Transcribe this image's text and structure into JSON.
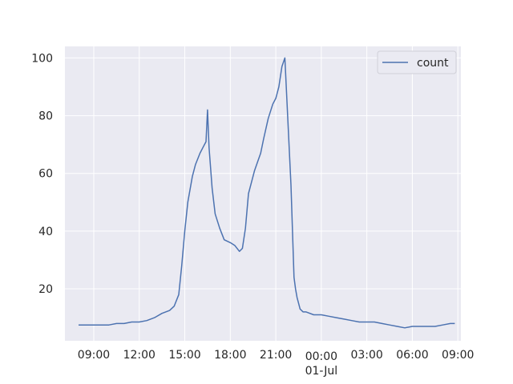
{
  "chart_data": {
    "type": "line",
    "xlabel": "",
    "x_ticks": [
      "09:00",
      "12:00",
      "15:00",
      "18:00",
      "21:00",
      "00:00\n01-Jul",
      "03:00",
      "06:00",
      "09:00"
    ],
    "x_tick_hours": [
      9,
      12,
      15,
      18,
      21,
      24,
      27,
      30,
      33
    ],
    "xlim_hours": [
      7.1,
      33.2
    ],
    "y_ticks": [
      20,
      40,
      60,
      80,
      100
    ],
    "ylim": [
      2,
      104
    ],
    "grid": true,
    "legend": {
      "position": "top-right",
      "entries": [
        "count"
      ]
    },
    "colors": {
      "series": "#4c72b0",
      "plot_bg": "#eaeaf2",
      "grid": "#ffffff"
    },
    "series": [
      {
        "name": "count",
        "x_hours": [
          8.0,
          8.5,
          9.0,
          9.5,
          10.0,
          10.5,
          11.0,
          11.5,
          12.0,
          12.5,
          13.0,
          13.5,
          14.0,
          14.3,
          14.6,
          14.8,
          15.0,
          15.2,
          15.5,
          15.7,
          16.0,
          16.2,
          16.4,
          16.5,
          16.6,
          16.7,
          16.8,
          17.0,
          17.3,
          17.6,
          18.0,
          18.3,
          18.6,
          18.8,
          19.0,
          19.2,
          19.4,
          19.6,
          19.8,
          20.0,
          20.2,
          20.5,
          20.8,
          21.0,
          21.2,
          21.4,
          21.6,
          21.8,
          22.0,
          22.2,
          22.3,
          22.4,
          22.5,
          22.6,
          22.8,
          23.0,
          23.5,
          24.0,
          24.5,
          25.0,
          25.5,
          26.0,
          26.5,
          27.0,
          27.5,
          28.0,
          28.5,
          29.0,
          29.5,
          30.0,
          30.5,
          31.0,
          31.5,
          32.0,
          32.5,
          32.8
        ],
        "values": [
          7.5,
          7.5,
          7.5,
          7.5,
          7.5,
          8,
          8,
          8.5,
          8.5,
          9,
          10,
          11.5,
          12.5,
          14,
          18,
          28,
          40,
          50,
          59,
          63,
          67,
          69,
          71,
          82,
          69,
          62,
          55,
          46,
          41,
          37,
          36,
          35,
          33,
          34,
          41,
          53,
          57,
          61,
          64,
          67,
          72,
          79,
          84,
          86,
          90,
          97,
          100,
          78,
          56,
          24,
          20,
          17,
          15,
          13,
          12,
          12,
          11,
          11,
          10.5,
          10,
          9.5,
          9,
          8.5,
          8.5,
          8.5,
          8,
          7.5,
          7,
          6.5,
          7,
          7,
          7,
          7,
          7.5,
          8,
          8
        ]
      }
    ]
  }
}
